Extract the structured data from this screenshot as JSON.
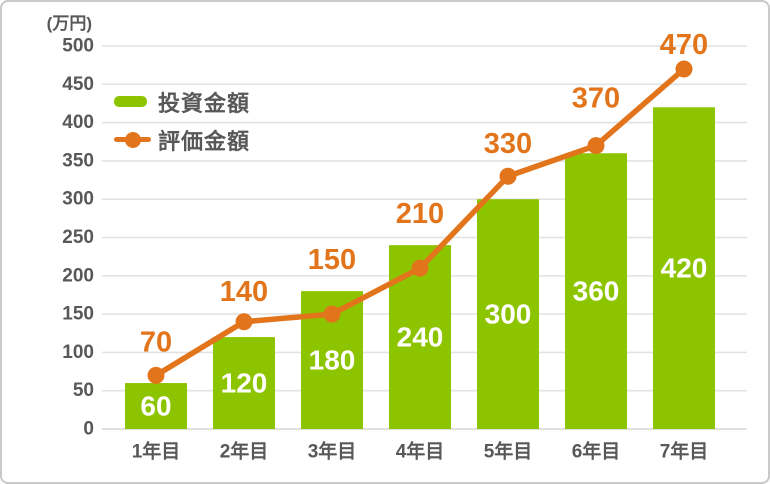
{
  "unit_label": "(万円)",
  "colors": {
    "bar_green": "#8dc400",
    "line_orange": "#e2751c",
    "axis_text": "#595757",
    "gridline": "#e2e2e2",
    "baseline": "#d6d6d6",
    "bar_value_text": "#ffffff",
    "card_border": "#c9c9c9",
    "background": "#ffffff"
  },
  "chart_data": {
    "type": "combo",
    "title": "",
    "xlabel": "",
    "ylabel": "(万円)",
    "categories": [
      "1年目",
      "2年目",
      "3年目",
      "4年目",
      "5年目",
      "6年目",
      "7年目"
    ],
    "series": [
      {
        "name": "投資金額",
        "type": "bar",
        "color": "#8dc400",
        "values": [
          60,
          120,
          180,
          240,
          300,
          360,
          420
        ],
        "value_labels": [
          "60",
          "120",
          "180",
          "240",
          "300",
          "360",
          "420"
        ],
        "value_label_position": "inside-center"
      },
      {
        "name": "評価金額",
        "type": "line",
        "color": "#e2751c",
        "values": [
          70,
          140,
          150,
          210,
          330,
          370,
          470
        ],
        "value_labels": [
          "70",
          "140",
          "150",
          "210",
          "330",
          "370",
          "470"
        ],
        "value_label_position": "above",
        "marker": "circle"
      }
    ],
    "y_ticks": [
      0,
      50,
      100,
      150,
      200,
      250,
      300,
      350,
      400,
      450,
      500
    ],
    "y_tick_labels": [
      "0",
      "50",
      "100",
      "150",
      "200",
      "250",
      "300",
      "350",
      "400",
      "450",
      "500"
    ],
    "ylim": [
      0,
      500
    ],
    "grid": true,
    "legend_position": "top-left"
  }
}
